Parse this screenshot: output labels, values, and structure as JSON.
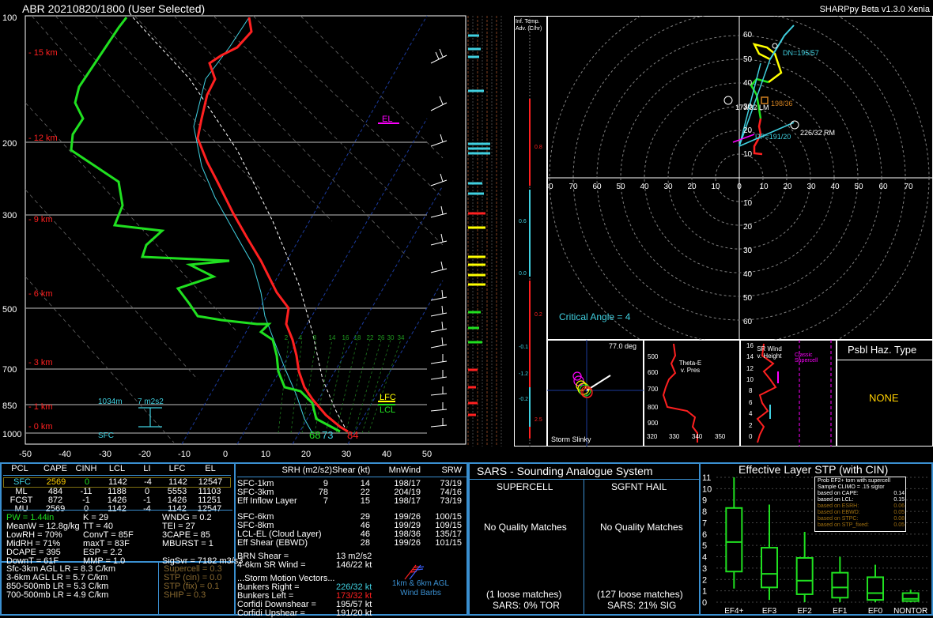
{
  "header": {
    "title": "ABR   20210820/1800   (User Selected)",
    "version": "SHARPpy Beta v1.3.0 Xenia"
  },
  "colors": {
    "temperature": "#ff2020",
    "dewpoint": "#20e020",
    "wetbulb": "#40d0e0",
    "parcel": "#ffffff",
    "hodo_grid": "#808080",
    "panel_border": "#3a8fd0",
    "lfc": "#ffff00",
    "el": "#ff00ff"
  },
  "skewt": {
    "pressure_labels": [
      "100",
      "200",
      "300",
      "500",
      "700",
      "850",
      "1000"
    ],
    "height_labels": [
      "15 km",
      "12 km",
      "9 km",
      "6 km",
      "3 km",
      "1 km",
      "0 km"
    ],
    "temp_ticks": [
      "-50",
      "-40",
      "-30",
      "-20",
      "-10",
      "0",
      "10",
      "20",
      "30",
      "40",
      "50"
    ],
    "mixing_ratio_labels": [
      "2",
      "4",
      "8",
      "14",
      "16",
      "18",
      "22",
      "26",
      "30",
      "34"
    ],
    "el_label": "EL",
    "lfc_label": "LFC",
    "lcl_label": "LCL",
    "effective_layer_base": "1034m",
    "effective_srh": "7 m2s2",
    "sfc_label": "SFC",
    "sfc_dewpoint": "68",
    "sfc_wetbulb": "73",
    "sfc_temp": "84"
  },
  "inferred_temp_adv": {
    "title": "Inf. Temp. Adv. (C/hr)",
    "values": [
      "0.8",
      "0.6",
      "0.0",
      "0.2",
      "-0.1",
      "-1.2",
      "-0.2",
      "2.5"
    ]
  },
  "hodograph": {
    "rings_labels": [
      "60",
      "50",
      "40",
      "30",
      "20",
      "10"
    ],
    "x_labels": [
      "80",
      "70",
      "60",
      "50",
      "40",
      "30",
      "20",
      "10",
      "0",
      "10",
      "20",
      "30",
      "40",
      "50",
      "60",
      "70"
    ],
    "y_labels_lower": [
      "10",
      "20",
      "30",
      "40",
      "50",
      "60"
    ],
    "lm_label": "173/32 LM",
    "rm_label": "226/32 RM",
    "dn_label": "DN=195/57",
    "up_label": "UP=191/20",
    "mean_label": "198/36",
    "critical_angle": "Critical Angle = 4"
  },
  "storm_slinky": {
    "label": "Storm Slinky",
    "angle": "77.0 deg"
  },
  "theta_e": {
    "title": "Theta-E v. Pres",
    "y_labels": [
      "500",
      "600",
      "700",
      "800",
      "900"
    ],
    "x_labels": [
      "320",
      "330",
      "340",
      "350"
    ]
  },
  "sr_wind": {
    "title": "SR Wind v. Height",
    "y_labels": [
      "16",
      "14",
      "12",
      "10",
      "8",
      "6",
      "4",
      "2",
      "0"
    ],
    "x_labels": [
      "0",
      "20",
      "40",
      "60",
      "80"
    ],
    "classic_label": "Classic Supercell"
  },
  "hazard": {
    "title": "Psbl Haz. Type",
    "value": "NONE"
  },
  "parcels": {
    "headers": [
      "PCL",
      "CAPE",
      "CINH",
      "LCL",
      "LI",
      "LFC",
      "EL"
    ],
    "rows": [
      {
        "pcl": "SFC",
        "cape": "2569",
        "cinh": "0",
        "lcl": "1142",
        "li": "-4",
        "lfc": "1142",
        "el": "12547"
      },
      {
        "pcl": "ML",
        "cape": "484",
        "cinh": "-11",
        "lcl": "1188",
        "li": "0",
        "lfc": "5553",
        "el": "11103"
      },
      {
        "pcl": "FCST",
        "cape": "872",
        "cinh": "-1",
        "lcl": "1426",
        "li": "-1",
        "lfc": "1426",
        "el": "11251"
      },
      {
        "pcl": "MU",
        "cape": "2569",
        "cinh": "0",
        "lcl": "1142",
        "li": "-4",
        "lfc": "1142",
        "el": "12547"
      }
    ]
  },
  "indices": {
    "col1": [
      "PW = 1.44in",
      "MeanW = 12.8g/kg",
      "LowRH = 70%",
      "MidRH = 71%",
      "DCAPE = 395",
      "DownT = 61F"
    ],
    "col2": [
      "K = 29",
      "TT = 40",
      "ConvT = 85F",
      "maxT = 83F",
      "ESP = 2.2",
      "MMP = 1.0"
    ],
    "col3": [
      "WNDG = 0.2",
      "TEI = 27",
      "3CAPE = 85",
      "MBURST = 1",
      "",
      "SigSvr = 7182 m3/s3"
    ],
    "lapse": [
      "Sfc-3km AGL LR = 8.3 C/km",
      "3-6km AGL LR = 5.7 C/km",
      "850-500mb LR = 5.3 C/km",
      "700-500mb LR = 4.9 C/km"
    ],
    "composite": [
      "Supercell = 0.3",
      "STP (cin) = 0.0",
      "STP (fix) = 0.1",
      "SHIP = 0.3"
    ]
  },
  "kinematics": {
    "headers": [
      "SRH (m2/s2)",
      "Shear (kt)",
      "MnWind",
      "SRW"
    ],
    "rows": [
      {
        "name": "SFC-1km",
        "srh": "9",
        "shear": "14",
        "mnwind": "198/17",
        "srw": "73/19"
      },
      {
        "name": "SFC-3km",
        "srh": "78",
        "shear": "22",
        "mnwind": "204/19",
        "srw": "74/16"
      },
      {
        "name": "Eff Inflow Layer",
        "srh": "7",
        "shear": "15",
        "mnwind": "198/17",
        "srw": "73/19"
      },
      {
        "name": "SFC-6km",
        "srh": "",
        "shear": "29",
        "mnwind": "199/26",
        "srw": "100/15"
      },
      {
        "name": "SFC-8km",
        "srh": "",
        "shear": "46",
        "mnwind": "199/29",
        "srw": "109/15"
      },
      {
        "name": "LCL-EL (Cloud Layer)",
        "srh": "",
        "shear": "46",
        "mnwind": "198/36",
        "srw": "135/17"
      },
      {
        "name": "Eff Shear (EBWD)",
        "srh": "",
        "shear": "28",
        "mnwind": "199/26",
        "srw": "101/15"
      }
    ],
    "brn_shear_label": "BRN Shear =",
    "brn_shear": "13 m2/s2",
    "sr_wind_46_label": "4-6km SR Wind =",
    "sr_wind_46": "146/22 kt",
    "motion_title": "...Storm Motion Vectors...",
    "motion_rows": [
      {
        "name": "Bunkers Right =",
        "value": "226/32 kt"
      },
      {
        "name": "Bunkers Left =",
        "value": "173/32 kt"
      },
      {
        "name": "Corfidi Downshear =",
        "value": "195/57 kt"
      },
      {
        "name": "Corfidi Upshear =",
        "value": "191/20 kt"
      }
    ],
    "wind_barbs_label": "1km & 6km AGL Wind Barbs"
  },
  "sars": {
    "title": "SARS - Sounding Analogue System",
    "supercell_title": "SUPERCELL",
    "hail_title": "SGFNT HAIL",
    "supercell_result": "No Quality Matches",
    "hail_result": "No Quality Matches",
    "supercell_loose": "(1 loose matches)",
    "hail_loose": "(127 loose matches)",
    "supercell_pct": "SARS: 0% TOR",
    "hail_pct": "SARS: 21% SIG"
  },
  "stp": {
    "title": "Effective Layer STP (with CIN)",
    "legend_title": "Prob EF2+ torn with supercell",
    "legend_sub": "Sample CLIMO = .15 sigtor",
    "legend_rows": [
      {
        "label": "based on CAPE:",
        "value": "0.14"
      },
      {
        "label": "based on LCL:",
        "value": "0.15"
      },
      {
        "label": "based on ESRH:",
        "value": "0.06"
      },
      {
        "label": "based on EBWD:",
        "value": "0.05"
      },
      {
        "label": "based on STPC:",
        "value": "0.08"
      },
      {
        "label": "based on STP_fixed:",
        "value": "0.05"
      }
    ],
    "y_labels": [
      "11",
      "10",
      "9",
      "8",
      "7",
      "6",
      "5",
      "4",
      "3",
      "2",
      "1",
      "0"
    ],
    "categories": [
      "EF4+",
      "EF3",
      "EF2",
      "EF1",
      "EF0",
      "NONTOR"
    ]
  },
  "chart_data": [
    {
      "type": "line",
      "title": "Skew-T",
      "pressure_hpa": [
        1000,
        925,
        850,
        700,
        500,
        300,
        200,
        100
      ],
      "series": [
        {
          "name": "Temperature",
          "values": [
            29,
            22,
            17,
            8,
            0,
            -25,
            -45,
            -52
          ]
        },
        {
          "name": "Dewpoint",
          "values": [
            20,
            17,
            12,
            3,
            -17,
            -37,
            -65,
            -75
          ]
        }
      ]
    },
    {
      "type": "bar",
      "title": "Effective Layer STP (with CIN)",
      "categories": [
        "EF4+",
        "EF3",
        "EF2",
        "EF1",
        "EF0",
        "NONTOR"
      ],
      "boxes": [
        {
          "whisker_low": 1.2,
          "q1": 2.7,
          "median": 5.3,
          "q3": 8.3,
          "whisker_high": 11.0
        },
        {
          "whisker_low": 0.2,
          "q1": 1.3,
          "median": 2.5,
          "q3": 4.8,
          "whisker_high": 8.6
        },
        {
          "whisker_low": 0.0,
          "q1": 0.7,
          "median": 1.9,
          "q3": 3.9,
          "whisker_high": 6.2
        },
        {
          "whisker_low": 0.0,
          "q1": 0.4,
          "median": 1.3,
          "q3": 2.6,
          "whisker_high": 4.0
        },
        {
          "whisker_low": 0.0,
          "q1": 0.2,
          "median": 0.8,
          "q3": 2.2,
          "whisker_high": 3.3
        },
        {
          "whisker_low": 0.0,
          "q1": 0.1,
          "median": 0.3,
          "q3": 0.8,
          "whisker_high": 1.1
        }
      ],
      "ylim": [
        0,
        11
      ]
    }
  ]
}
